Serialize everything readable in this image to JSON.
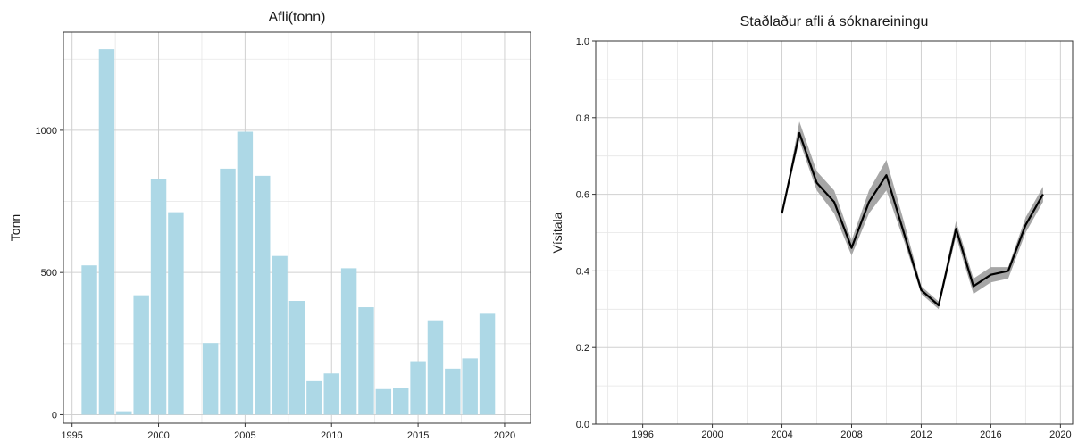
{
  "chart_data": [
    {
      "type": "bar",
      "title": "Afli(tonn)",
      "xlabel": "",
      "ylabel": "Tonn",
      "x": [
        1996,
        1997,
        1998,
        1999,
        2000,
        2001,
        2003,
        2004,
        2005,
        2006,
        2007,
        2008,
        2009,
        2010,
        2011,
        2012,
        2013,
        2014,
        2015,
        2016,
        2017,
        2018,
        2019
      ],
      "values": [
        525,
        1285,
        12,
        420,
        828,
        712,
        252,
        865,
        995,
        840,
        558,
        400,
        118,
        145,
        515,
        378,
        90,
        95,
        188,
        332,
        162,
        198,
        355
      ],
      "xlim": [
        1994.5,
        2021.5
      ],
      "ylim": [
        -30,
        1345
      ],
      "xticks": [
        1995,
        2000,
        2005,
        2010,
        2015,
        2020
      ],
      "yticks": [
        0,
        500,
        1000
      ],
      "xtick_labels": [
        "1995",
        "2000",
        "2005",
        "2010",
        "2015",
        "2020"
      ],
      "ytick_labels": [
        "0",
        "500",
        "1000"
      ],
      "bar_color": "#add8e6",
      "grid": true
    },
    {
      "type": "line",
      "title": "Staðlaður afli á sóknareiningu",
      "xlabel": "",
      "ylabel": "Vísitala",
      "series": [
        {
          "x": [
            2004,
            2005,
            2006,
            2007,
            2008,
            2009,
            2010,
            2011,
            2012,
            2013,
            2014,
            2015,
            2016,
            2017,
            2018,
            2019
          ],
          "values": [
            0.55,
            0.76,
            0.63,
            0.58,
            0.46,
            0.58,
            0.65,
            0.5,
            0.35,
            0.31,
            0.51,
            0.36,
            0.39,
            0.4,
            0.52,
            0.6
          ],
          "lower": [
            0.55,
            0.74,
            0.61,
            0.55,
            0.44,
            0.55,
            0.61,
            0.48,
            0.34,
            0.3,
            0.49,
            0.34,
            0.37,
            0.38,
            0.5,
            0.58
          ],
          "upper": [
            0.55,
            0.79,
            0.66,
            0.61,
            0.48,
            0.61,
            0.69,
            0.53,
            0.36,
            0.32,
            0.53,
            0.38,
            0.41,
            0.41,
            0.54,
            0.62
          ],
          "line_color": "#000000",
          "band_color": "#a6a6a6"
        }
      ],
      "xlim": [
        1993.3,
        2020.7
      ],
      "ylim": [
        0.0,
        1.0
      ],
      "xticks": [
        1996,
        2000,
        2004,
        2008,
        2012,
        2016,
        2020
      ],
      "yticks": [
        0.0,
        0.2,
        0.4,
        0.6,
        0.8,
        1.0
      ],
      "xtick_labels": [
        "1996",
        "2000",
        "2004",
        "2008",
        "2012",
        "2016",
        "2020"
      ],
      "ytick_labels": [
        "0.0",
        "0.2",
        "0.4",
        "0.6",
        "0.8",
        "1.0"
      ],
      "grid": true
    }
  ]
}
